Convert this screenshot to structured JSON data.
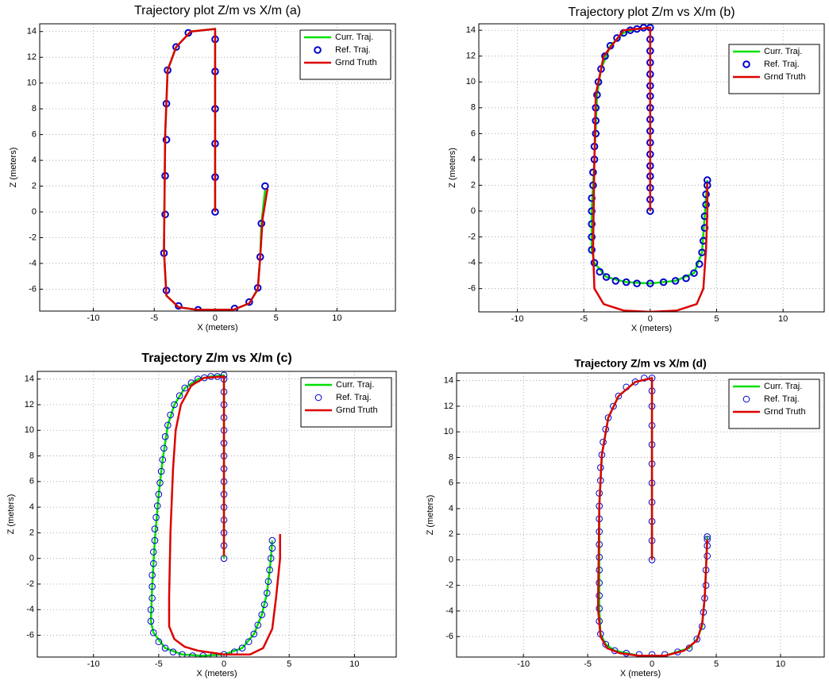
{
  "chart_data": [
    {
      "type": "line",
      "title": "Trajectory plot Z/m vs X/m (a)",
      "x_label": "X (meters)",
      "y_label": "Z (meters)",
      "xlim": [
        -14.4,
        14.8
      ],
      "ylim": [
        -7.7,
        14.6
      ],
      "xticks": [
        -10,
        -5,
        0,
        5,
        10
      ],
      "yticks": [
        -6,
        -4,
        -2,
        0,
        2,
        4,
        6,
        8,
        10,
        12,
        14
      ],
      "grid": true,
      "legend": "upper right",
      "series": [
        {
          "name": "Curr. Traj.",
          "color": "#00e000",
          "mode": "line",
          "linewidth": 2.5,
          "x": [
            0,
            0,
            -2,
            -3.2,
            -3.9,
            -4.1,
            -4.2,
            -4,
            -3,
            -1.5,
            1.5,
            2.8,
            3.5,
            3.7,
            3.8,
            4.1
          ],
          "values": [
            0,
            14.2,
            14,
            12.8,
            11,
            6,
            -3,
            -6.5,
            -7.4,
            -7.6,
            -7.6,
            -7.1,
            -6,
            -3.5,
            -0.9,
            1.7
          ]
        },
        {
          "name": "Ref. Traj.",
          "color": "#0000cc",
          "mode": "markers",
          "linewidth": 2,
          "x": [
            0,
            0,
            0,
            0,
            0,
            0,
            -2.2,
            -3.2,
            -3.9,
            -4,
            -4,
            -4.1,
            -4.1,
            -4.2,
            -4,
            -3,
            -1.4,
            1.6,
            2.8,
            3.5,
            3.7,
            3.8,
            4.1
          ],
          "values": [
            0,
            2.7,
            5.3,
            8,
            10.9,
            13.4,
            13.9,
            12.8,
            11,
            8.4,
            5.6,
            2.8,
            -0.2,
            -3.2,
            -6.1,
            -7.3,
            -7.6,
            -7.5,
            -7,
            -5.9,
            -3.5,
            -0.9,
            2
          ]
        },
        {
          "name": "Grnd Truth",
          "color": "#dd0000",
          "mode": "line",
          "linewidth": 2.5,
          "x": [
            0,
            0,
            -2,
            -3.2,
            -3.9,
            -4.1,
            -4.2,
            -4,
            -3,
            -1.5,
            1.5,
            2.8,
            3.5,
            3.7,
            3.9,
            4.3
          ],
          "values": [
            0,
            14.2,
            14,
            12.8,
            11,
            6,
            -3,
            -6.5,
            -7.4,
            -7.6,
            -7.6,
            -7.1,
            -6,
            -3.5,
            -0.5,
            1.8
          ]
        }
      ]
    },
    {
      "type": "line",
      "title": "Trajectory plot Z/m vs X/m (b)",
      "x_label": "X (meters)",
      "y_label": "Z (meters)",
      "xlim": [
        -12.9,
        13.1
      ],
      "ylim": [
        -7.8,
        14.5
      ],
      "xticks": [
        -10,
        -5,
        0,
        5,
        10
      ],
      "yticks": [
        -6,
        -4,
        -2,
        0,
        2,
        4,
        6,
        8,
        10,
        12,
        14
      ],
      "grid": true,
      "legend": "upper right",
      "series": [
        {
          "name": "Curr. Traj.",
          "color": "#00e000",
          "mode": "line",
          "linewidth": 2.5,
          "x": [
            0,
            0,
            -1,
            -2,
            -3,
            -3.7,
            -4,
            -4.2,
            -4.4,
            -4.4,
            -4.2,
            -3.3,
            -1.8,
            0,
            1.9,
            3.3,
            3.9,
            4.1,
            4.3
          ],
          "values": [
            0,
            14.2,
            14.1,
            13.8,
            12.8,
            11,
            9,
            4,
            0,
            -3,
            -4,
            -5.1,
            -5.5,
            -5.6,
            -5.4,
            -4.8,
            -3.2,
            -0.4,
            2.4
          ]
        },
        {
          "name": "Ref. Traj.",
          "color": "#0000cc",
          "mode": "markers",
          "linewidth": 2,
          "x": [
            0,
            0,
            0,
            0,
            0,
            0,
            0,
            0,
            0,
            0,
            0,
            0,
            0,
            0,
            0,
            0,
            0,
            -0.5,
            -1,
            -1.5,
            -2,
            -2.5,
            -3,
            -3.4,
            -3.7,
            -3.9,
            -4,
            -4.1,
            -4.1,
            -4.1,
            -4.2,
            -4.2,
            -4.3,
            -4.3,
            -4.4,
            -4.4,
            -4.4,
            -4.4,
            -4.4,
            -4.2,
            -3.8,
            -3.3,
            -2.6,
            -1.8,
            -1,
            0,
            1,
            1.9,
            2.7,
            3.3,
            3.7,
            3.9,
            4,
            4.1,
            4.1,
            4.2,
            4.2,
            4.3,
            4.3
          ],
          "values": [
            0,
            0.9,
            1.8,
            2.7,
            3.5,
            4.4,
            5.3,
            6.2,
            7.1,
            8,
            8.9,
            9.7,
            10.6,
            11.5,
            12.4,
            13.3,
            14.2,
            14.2,
            14.1,
            14,
            13.8,
            13.4,
            12.8,
            12,
            11,
            10,
            9,
            8,
            7,
            6,
            5,
            4,
            3,
            2,
            1,
            0,
            -1,
            -2,
            -3,
            -4,
            -4.7,
            -5.1,
            -5.4,
            -5.5,
            -5.6,
            -5.6,
            -5.5,
            -5.4,
            -5.2,
            -4.8,
            -4.1,
            -3.2,
            -2.3,
            -1.3,
            -0.4,
            0.5,
            1.3,
            2,
            2.4
          ]
        },
        {
          "name": "Grnd Truth",
          "color": "#dd0000",
          "mode": "line",
          "linewidth": 2.5,
          "x": [
            0,
            0,
            -2,
            -3.5,
            -4.1,
            -4.2,
            -4.3,
            -4.2,
            -3.5,
            -2,
            0,
            2,
            3.5,
            4,
            4.2,
            4.3,
            4.3
          ],
          "values": [
            0,
            14.2,
            14,
            12,
            9,
            4,
            -3,
            -6,
            -7.2,
            -7.7,
            -7.8,
            -7.7,
            -7.2,
            -6,
            -3,
            0,
            2.2
          ]
        }
      ]
    },
    {
      "type": "line",
      "title": "Trajectory Z/m vs X/m (c)",
      "x_label": "X (meters)",
      "y_label": "Z (meters)",
      "xlim": [
        -14.3,
        13.2
      ],
      "ylim": [
        -7.7,
        14.6
      ],
      "xticks": [
        -10,
        -5,
        0,
        5,
        10
      ],
      "yticks": [
        -6,
        -4,
        -2,
        0,
        2,
        4,
        6,
        8,
        10,
        12,
        14
      ],
      "grid": true,
      "legend": "upper right",
      "series": [
        {
          "name": "Curr. Traj.",
          "color": "#00e000",
          "mode": "line",
          "linewidth": 2.5,
          "x": [
            0,
            0,
            -1,
            -2,
            -3,
            -3.8,
            -4.3,
            -4.7,
            -5,
            -5.3,
            -5.5,
            -5.6,
            -5.4,
            -4.5,
            -3.2,
            -1.6,
            0,
            1.4,
            2.3,
            2.9,
            3.3,
            3.6,
            3.7
          ],
          "values": [
            0,
            14.3,
            14.2,
            14,
            13.3,
            12,
            10.4,
            7.7,
            5,
            1.4,
            -2.2,
            -4.9,
            -5.8,
            -7,
            -7.5,
            -7.6,
            -7.5,
            -7,
            -5.9,
            -4.4,
            -2.7,
            0,
            1.4
          ]
        },
        {
          "name": "Ref. Traj.",
          "color": "#0000cc",
          "mode": "markers",
          "linewidth": 1,
          "x": [
            0,
            0,
            0,
            0,
            0,
            0,
            0,
            0,
            0,
            0,
            0,
            0,
            0,
            0,
            0,
            0,
            -0.5,
            -1,
            -1.5,
            -2,
            -2.5,
            -3,
            -3.4,
            -3.8,
            -4.1,
            -4.3,
            -4.5,
            -4.6,
            -4.7,
            -4.8,
            -4.9,
            -5,
            -5.1,
            -5.2,
            -5.3,
            -5.3,
            -5.4,
            -5.4,
            -5.5,
            -5.5,
            -5.5,
            -5.6,
            -5.6,
            -5.4,
            -5,
            -4.5,
            -3.9,
            -3.2,
            -2.4,
            -1.6,
            -0.8,
            0,
            0.8,
            1.4,
            1.9,
            2.3,
            2.6,
            2.9,
            3.1,
            3.3,
            3.4,
            3.5,
            3.6,
            3.7,
            3.7
          ],
          "values": [
            0,
            1,
            2,
            3,
            4,
            5,
            6,
            7,
            8,
            9,
            10,
            11,
            12,
            13,
            14,
            14.3,
            14.2,
            14.2,
            14.1,
            14,
            13.7,
            13.3,
            12.7,
            12,
            11.2,
            10.4,
            9.5,
            8.6,
            7.7,
            6.8,
            5.9,
            5,
            4.1,
            3.2,
            2.3,
            1.4,
            0.5,
            -0.4,
            -1.3,
            -2.2,
            -3.1,
            -4,
            -4.9,
            -5.8,
            -6.5,
            -7,
            -7.3,
            -7.5,
            -7.6,
            -7.6,
            -7.6,
            -7.5,
            -7.3,
            -7,
            -6.5,
            -5.9,
            -5.2,
            -4.4,
            -3.6,
            -2.7,
            -1.8,
            -0.9,
            0,
            0.8,
            1.4
          ]
        },
        {
          "name": "Grnd Truth",
          "color": "#dd0000",
          "mode": "line",
          "linewidth": 2.5,
          "x": [
            0,
            0,
            -1.5,
            -2.5,
            -3.3,
            -3.7,
            -3.9,
            -4.1,
            -4.2,
            -4.2,
            -3.8,
            -3,
            -2,
            0,
            2,
            3,
            3.7,
            4,
            4.3,
            4.3
          ],
          "values": [
            0.2,
            14.2,
            14.1,
            13.5,
            12,
            10,
            7,
            2,
            -3,
            -5.3,
            -6.3,
            -6.9,
            -7.2,
            -7.5,
            -7.5,
            -7,
            -5.5,
            -3,
            0,
            1.9
          ]
        }
      ]
    },
    {
      "type": "line",
      "title": "Trajectory Z/m vs X/m (d)",
      "x_label": "X (meters)",
      "y_label": "Z (meters)",
      "xlim": [
        -15.2,
        13.4
      ],
      "ylim": [
        -7.6,
        14.6
      ],
      "xticks": [
        -10,
        -5,
        0,
        5,
        10
      ],
      "yticks": [
        -6,
        -4,
        -2,
        0,
        2,
        4,
        6,
        8,
        10,
        12,
        14
      ],
      "grid": true,
      "legend": "upper right",
      "series": [
        {
          "name": "Curr. Traj.",
          "color": "#00e000",
          "mode": "line",
          "linewidth": 2.5,
          "x": [
            0,
            0,
            -1.3,
            -2.6,
            -3.4,
            -3.9,
            -4.1,
            -4.1,
            -4,
            -3.6,
            -2.9,
            -1,
            1,
            2.9,
            3.5,
            3.9,
            4.1,
            4.2,
            4.3
          ],
          "values": [
            0,
            14.2,
            13.9,
            12.8,
            11.1,
            8.2,
            4.2,
            -3.8,
            -5.8,
            -6.6,
            -7.1,
            -7.5,
            -7.5,
            -6.9,
            -6.2,
            -5.2,
            -3,
            -0.8,
            1.8
          ]
        },
        {
          "name": "Ref. Traj.",
          "color": "#0000cc",
          "mode": "markers",
          "linewidth": 1,
          "x": [
            0,
            0,
            0,
            0,
            0,
            0,
            0,
            0,
            0,
            0,
            0,
            -0.6,
            -1.3,
            -2,
            -2.6,
            -3,
            -3.4,
            -3.6,
            -3.8,
            -3.9,
            -4,
            -4,
            -4.1,
            -4.1,
            -4.1,
            -4.1,
            -4.1,
            -4.1,
            -4.1,
            -4.1,
            -4.1,
            -4.1,
            -4.1,
            -4,
            -3.6,
            -2.9,
            -2,
            -1,
            0,
            1,
            2,
            2.9,
            3.5,
            3.9,
            4,
            4.1,
            4.2,
            4.2,
            4.3,
            4.3,
            4.3,
            4.3
          ],
          "values": [
            0,
            1.5,
            3,
            4.5,
            6,
            7.5,
            9,
            10.5,
            12,
            13.2,
            14.2,
            14.2,
            13.9,
            13.5,
            12.8,
            12,
            11.1,
            10.2,
            9.2,
            8.2,
            7.2,
            6.2,
            5.2,
            4.2,
            3.2,
            2.2,
            1.2,
            0.2,
            -0.8,
            -1.8,
            -2.8,
            -3.8,
            -4.8,
            -5.8,
            -6.6,
            -7.1,
            -7.3,
            -7.4,
            -7.4,
            -7.4,
            -7.2,
            -6.9,
            -6.2,
            -5.2,
            -4.1,
            -3,
            -2,
            -0.8,
            0.3,
            1.1,
            1.6,
            1.8
          ]
        },
        {
          "name": "Grnd Truth",
          "color": "#dd0000",
          "mode": "line",
          "linewidth": 2.5,
          "x": [
            0,
            0,
            -1.3,
            -2.6,
            -3.4,
            -3.9,
            -4.1,
            -4.2,
            -4,
            -3.5,
            -2.5,
            -1,
            1,
            2.5,
            3.5,
            3.9,
            4.1,
            4.2,
            4.3
          ],
          "values": [
            0,
            14.2,
            13.9,
            12.8,
            11.1,
            8.2,
            4.2,
            -3.8,
            -6,
            -6.9,
            -7.3,
            -7.5,
            -7.5,
            -7.1,
            -6.3,
            -5,
            -3,
            -0.8,
            1.6
          ]
        }
      ]
    }
  ]
}
